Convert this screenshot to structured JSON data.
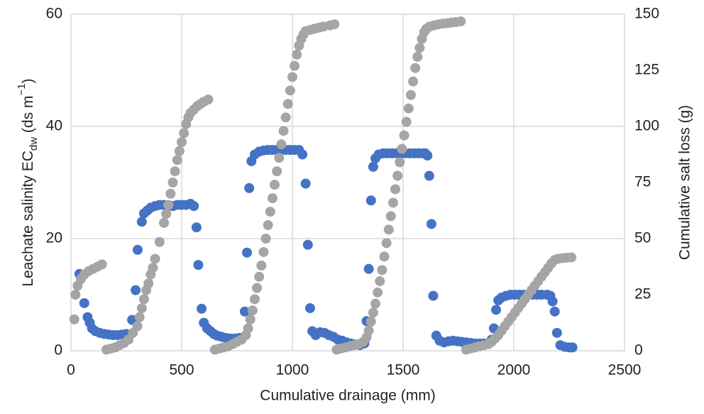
{
  "chart_data": {
    "type": "scatter",
    "xlabel": "Cumulative drainage (mm)",
    "ylabel": [
      "Leachate salinity EC",
      "dw",
      " (ds m",
      "−1",
      ")"
    ],
    "y2label": "Cumulative salt loss (g)",
    "xlim": [
      0,
      2500
    ],
    "xticks": [
      0,
      500,
      1000,
      1500,
      2000,
      2500
    ],
    "ylim": [
      0,
      60
    ],
    "yticks": [
      0,
      20,
      40,
      60
    ],
    "y2lim": [
      0,
      150
    ],
    "y2ticks": [
      0,
      25,
      50,
      75,
      100,
      125,
      150
    ],
    "grid": true,
    "series": [
      {
        "color": "#4472c4",
        "x": [
          38,
          60,
          75,
          85,
          95,
          110,
          130,
          150,
          170,
          190,
          210,
          230,
          250,
          276,
          292,
          301,
          320,
          330,
          345,
          360,
          380,
          400,
          420,
          440,
          460,
          480,
          500,
          520,
          540,
          555,
          567,
          575,
          590,
          600,
          615,
          630,
          645,
          660,
          680,
          700,
          720,
          740,
          760,
          785,
          795,
          805,
          815,
          830,
          850,
          870,
          890,
          910,
          930,
          950,
          970,
          990,
          1010,
          1030,
          1045,
          1060,
          1070,
          1080,
          1090,
          1105,
          1125,
          1145,
          1165,
          1185,
          1205,
          1225,
          1245,
          1265,
          1285,
          1305,
          1325,
          1335,
          1345,
          1355,
          1365,
          1375,
          1390,
          1410,
          1430,
          1450,
          1470,
          1490,
          1510,
          1530,
          1550,
          1570,
          1590,
          1600,
          1610,
          1618,
          1628,
          1636,
          1650,
          1665,
          1685,
          1705,
          1725,
          1745,
          1765,
          1785,
          1805,
          1825,
          1845,
          1865,
          1885,
          1900,
          1910,
          1920,
          1930,
          1945,
          1965,
          1985,
          2005,
          2025,
          2045,
          2065,
          2085,
          2105,
          2125,
          2150,
          2165,
          2175,
          2185,
          2195,
          2210,
          2230,
          2250,
          2265
        ],
        "values": [
          13.7,
          8.5,
          6,
          5,
          4,
          3.5,
          3.2,
          3,
          2.9,
          2.8,
          2.8,
          2.9,
          3,
          5.5,
          10.8,
          18,
          23,
          24.5,
          25,
          25.5,
          25.8,
          26,
          26,
          25.8,
          25.8,
          26,
          26,
          26,
          26.2,
          25.8,
          22,
          15.3,
          7.5,
          5,
          4,
          3.5,
          3,
          2.7,
          2.5,
          2.3,
          2.2,
          2.2,
          2.3,
          7,
          17.5,
          29,
          33.8,
          35,
          35.5,
          35.7,
          35.8,
          35.8,
          35.8,
          35.8,
          35.8,
          35.8,
          35.8,
          35.8,
          35,
          29.8,
          18.9,
          7.6,
          3.5,
          2.8,
          3.3,
          3.2,
          2.8,
          2.5,
          2,
          1.8,
          1.5,
          1.3,
          1.1,
          1,
          1.3,
          5.3,
          14.6,
          26.8,
          32.8,
          34.3,
          35,
          35.2,
          35.2,
          35.2,
          35.2,
          35.2,
          35.2,
          35.2,
          35.2,
          35.2,
          35.2,
          35.2,
          34.8,
          31.2,
          22.6,
          9.8,
          2.7,
          1.8,
          1.5,
          1.7,
          1.8,
          1.7,
          1.6,
          1.5,
          1.4,
          1.3,
          1.3,
          1.3,
          1.2,
          2,
          4,
          7.3,
          9,
          9.5,
          9.8,
          10,
          10,
          10,
          10,
          10,
          10,
          10,
          10,
          10,
          9.8,
          8.8,
          7,
          3.2,
          1,
          0.7,
          0.6,
          0.6
        ]
      },
      {
        "color": "#a5a5a5",
        "axis": "y2",
        "x": [
          15,
          20,
          30,
          45,
          60,
          80,
          100,
          120,
          140,
          160,
          180,
          200,
          220,
          240,
          260,
          280,
          300,
          310,
          320,
          330,
          340,
          350,
          360,
          370,
          380,
          400,
          420,
          430,
          440,
          450,
          460,
          470,
          480,
          490,
          500,
          510,
          520,
          530,
          540,
          555,
          570,
          585,
          600,
          620,
          650,
          670,
          690,
          710,
          730,
          750,
          770,
          790,
          800,
          810,
          820,
          830,
          840,
          850,
          860,
          870,
          880,
          890,
          900,
          910,
          920,
          930,
          940,
          950,
          960,
          970,
          980,
          990,
          1000,
          1010,
          1020,
          1030,
          1040,
          1050,
          1060,
          1080,
          1100,
          1120,
          1140,
          1170,
          1190,
          1200,
          1220,
          1240,
          1260,
          1280,
          1300,
          1320,
          1335,
          1345,
          1355,
          1365,
          1375,
          1385,
          1395,
          1405,
          1415,
          1425,
          1435,
          1445,
          1455,
          1465,
          1475,
          1485,
          1495,
          1505,
          1515,
          1525,
          1535,
          1545,
          1555,
          1565,
          1575,
          1585,
          1595,
          1605,
          1620,
          1640,
          1660,
          1680,
          1700,
          1720,
          1740,
          1760,
          1785,
          1805,
          1825,
          1845,
          1865,
          1885,
          1900,
          1915,
          1930,
          1945,
          1960,
          1975,
          1990,
          2005,
          2020,
          2035,
          2050,
          2065,
          2080,
          2095,
          2110,
          2125,
          2140,
          2155,
          2170,
          2185,
          2200,
          2220,
          2240,
          2260
        ],
        "values": [
          14,
          25,
          29,
          32,
          34,
          35.5,
          36.5,
          37.5,
          38.5,
          0.5,
          1,
          1.5,
          2.5,
          3.5,
          5,
          8,
          11,
          15,
          19,
          23,
          27,
          30,
          34,
          37,
          41,
          48.5,
          57,
          61,
          65,
          70,
          75,
          80,
          85,
          89,
          93,
          97,
          101,
          104,
          106,
          107.5,
          109,
          110,
          111,
          112,
          0.5,
          1,
          1.5,
          2,
          3,
          4,
          5,
          7,
          10,
          14,
          18,
          23,
          28,
          33,
          38,
          44,
          50,
          56,
          62,
          68,
          74,
          80,
          86,
          92,
          98,
          104,
          110,
          116,
          122,
          127,
          132,
          136,
          139,
          141,
          142.5,
          143,
          143.5,
          144,
          144.5,
          145,
          145.5,
          0.5,
          1,
          1.5,
          2,
          2.5,
          3,
          4,
          6,
          9,
          13,
          17,
          21,
          26,
          31,
          36,
          42,
          48,
          54,
          60,
          66,
          72,
          78,
          84,
          90,
          96,
          102,
          108,
          114,
          120,
          126,
          131,
          135,
          139,
          142,
          143.5,
          144.5,
          145,
          145.5,
          145.8,
          146,
          146.3,
          146.5,
          146.8,
          0.5,
          1,
          1.5,
          2,
          2.5,
          3,
          4,
          5.5,
          7,
          9,
          11,
          13,
          15,
          17,
          19,
          21,
          23,
          25,
          27,
          29,
          31,
          33,
          35,
          37,
          39,
          40.5,
          41,
          41.3,
          41.5,
          41.6
        ]
      }
    ]
  }
}
